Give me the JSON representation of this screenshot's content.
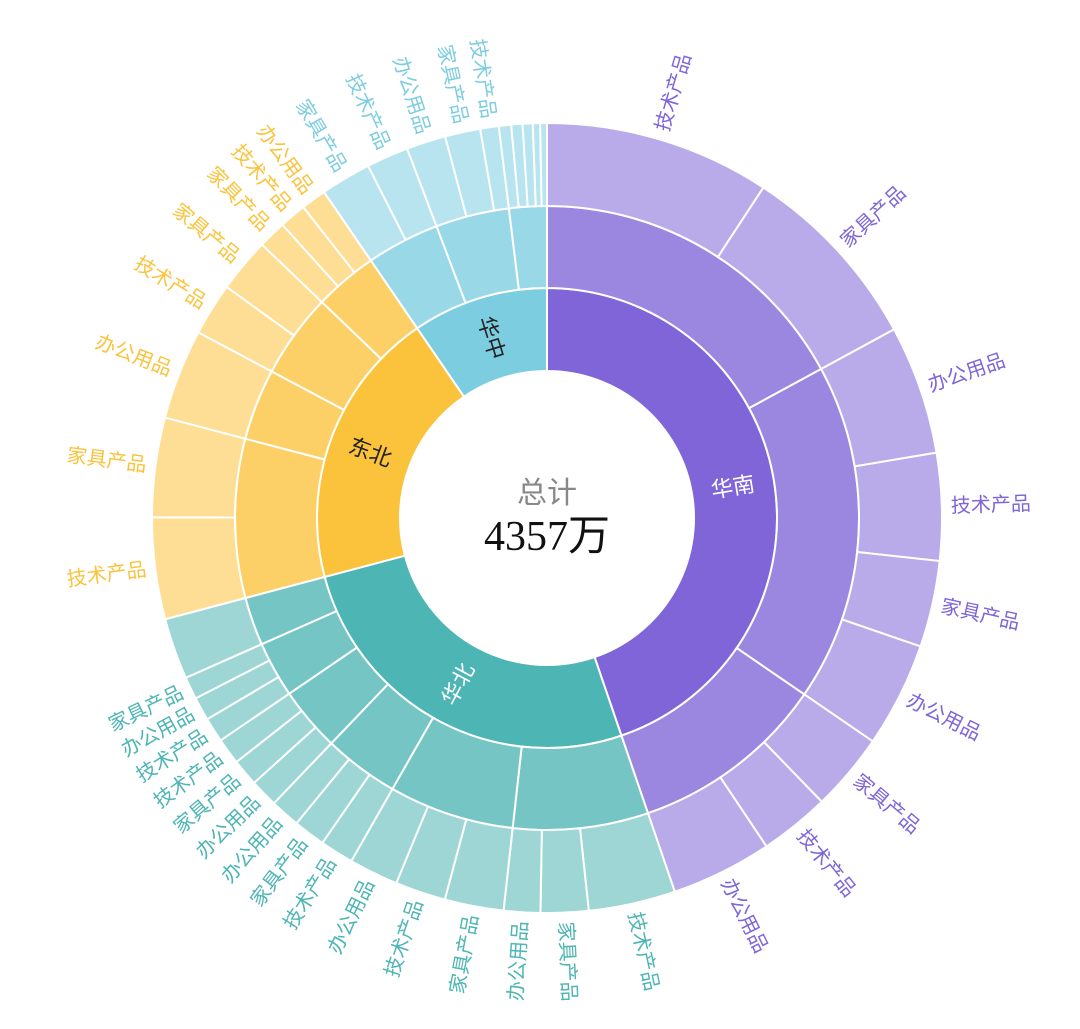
{
  "chart_data": {
    "type": "sunburst",
    "center": {
      "title": "总计",
      "value": "4357万"
    },
    "colors": {
      "华南": "#7f65d7",
      "华北": "#4db5b3",
      "东北": "#fbc33c",
      "华中": "#7ccde0"
    },
    "regions": [
      {
        "name": "华南",
        "value": 1950,
        "children": [
          {
            "value": 744,
            "children": [
              {
                "name": "技术产品",
                "value": 402
              },
              {
                "name": "家具产品",
                "value": 342
              }
            ]
          },
          {
            "value": 762,
            "children": [
              {
                "name": "办公用品",
                "value": 230
              },
              {
                "name": "技术产品",
                "value": 191
              },
              {
                "name": "家具产品",
                "value": 154
              },
              {
                "name": "办公用品",
                "value": 187
              }
            ]
          },
          {
            "value": 444,
            "children": [
              {
                "name": "家具产品",
                "value": 139
              },
              {
                "name": "技术产品",
                "value": 125
              },
              {
                "name": "办公用品",
                "value": 180
              }
            ]
          }
        ]
      },
      {
        "name": "华北",
        "value": 1138,
        "children": [
          {
            "value": 305,
            "children": [
              {
                "name": "技术产品",
                "value": 155
              },
              {
                "name": "家具产品",
                "value": 85
              },
              {
                "name": "办公用品",
                "value": 65
              }
            ]
          },
          {
            "value": 283,
            "children": [
              {
                "name": "家具产品",
                "value": 105
              },
              {
                "name": "技术产品",
                "value": 90
              },
              {
                "name": "办公用品",
                "value": 88
              }
            ]
          },
          {
            "value": 170,
            "children": [
              {
                "name": "技术产品",
                "value": 60
              },
              {
                "name": "家具产品",
                "value": 57
              },
              {
                "name": "办公用品",
                "value": 53
              }
            ]
          },
          {
            "value": 145,
            "children": [
              {
                "name": "办公用品",
                "value": 50
              },
              {
                "name": "家具产品",
                "value": 48
              },
              {
                "name": "技术产品",
                "value": 47
              }
            ]
          },
          {
            "value": 126,
            "children": [
              {
                "name": "技术产品",
                "value": 44
              },
              {
                "name": "办公用品",
                "value": 42
              },
              {
                "name": "家具产品",
                "value": 40
              }
            ]
          },
          {
            "value": 109,
            "children": [
              {
                "name": "",
                "value": 109
              }
            ]
          }
        ]
      },
      {
        "name": "东北",
        "value": 853,
        "children": [
          {
            "value": 358,
            "children": [
              {
                "name": "技术产品",
                "value": 181
              },
              {
                "name": "家具产品",
                "value": 177
              }
            ]
          },
          {
            "value": 161,
            "children": [
              {
                "name": "办公用品",
                "value": 161
              }
            ]
          },
          {
            "value": 191,
            "children": [
              {
                "name": "技术产品",
                "value": 94
              },
              {
                "name": "家具产品",
                "value": 97
              }
            ]
          },
          {
            "value": 143,
            "children": [
              {
                "name": "家具产品",
                "value": 50
              },
              {
                "name": "技术产品",
                "value": 48
              },
              {
                "name": "办公用品",
                "value": 45
              }
            ]
          }
        ]
      },
      {
        "name": "华中",
        "value": 416,
        "children": [
          {
            "value": 165,
            "children": [
              {
                "name": "家具产品",
                "value": 90
              },
              {
                "name": "技术产品",
                "value": 75
              }
            ]
          },
          {
            "value": 166,
            "children": [
              {
                "name": "办公用品",
                "value": 70
              },
              {
                "name": "家具产品",
                "value": 63
              },
              {
                "name": "技术产品",
                "value": 33
              }
            ]
          },
          {
            "value": 85,
            "children": [
              {
                "name": "",
                "value": 22
              },
              {
                "name": "",
                "value": 20
              },
              {
                "name": "",
                "value": 18
              },
              {
                "name": "",
                "value": 13
              },
              {
                "name": "",
                "value": 12
              }
            ]
          }
        ]
      }
    ]
  }
}
